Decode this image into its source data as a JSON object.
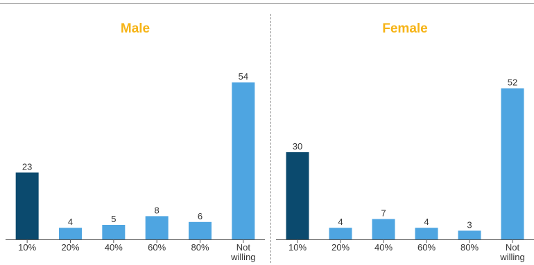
{
  "colors": {
    "highlight": "#0b4a6e",
    "bar": "#4ea5e1",
    "title": "#f6b417",
    "axis": "#555555"
  },
  "chart_data": [
    {
      "type": "bar",
      "title": "Male",
      "categories": [
        "10%",
        "20%",
        "40%",
        "60%",
        "80%",
        "Not willing"
      ],
      "values": [
        23,
        4,
        5,
        8,
        6,
        54
      ],
      "highlight_index": 0,
      "ylim": [
        0,
        60
      ],
      "grid": false,
      "xlabel": "",
      "ylabel": ""
    },
    {
      "type": "bar",
      "title": "Female",
      "categories": [
        "10%",
        "20%",
        "40%",
        "60%",
        "80%",
        "Not willing"
      ],
      "values": [
        30,
        4,
        7,
        4,
        3,
        52
      ],
      "highlight_index": 0,
      "ylim": [
        0,
        60
      ],
      "grid": false,
      "xlabel": "",
      "ylabel": ""
    }
  ]
}
